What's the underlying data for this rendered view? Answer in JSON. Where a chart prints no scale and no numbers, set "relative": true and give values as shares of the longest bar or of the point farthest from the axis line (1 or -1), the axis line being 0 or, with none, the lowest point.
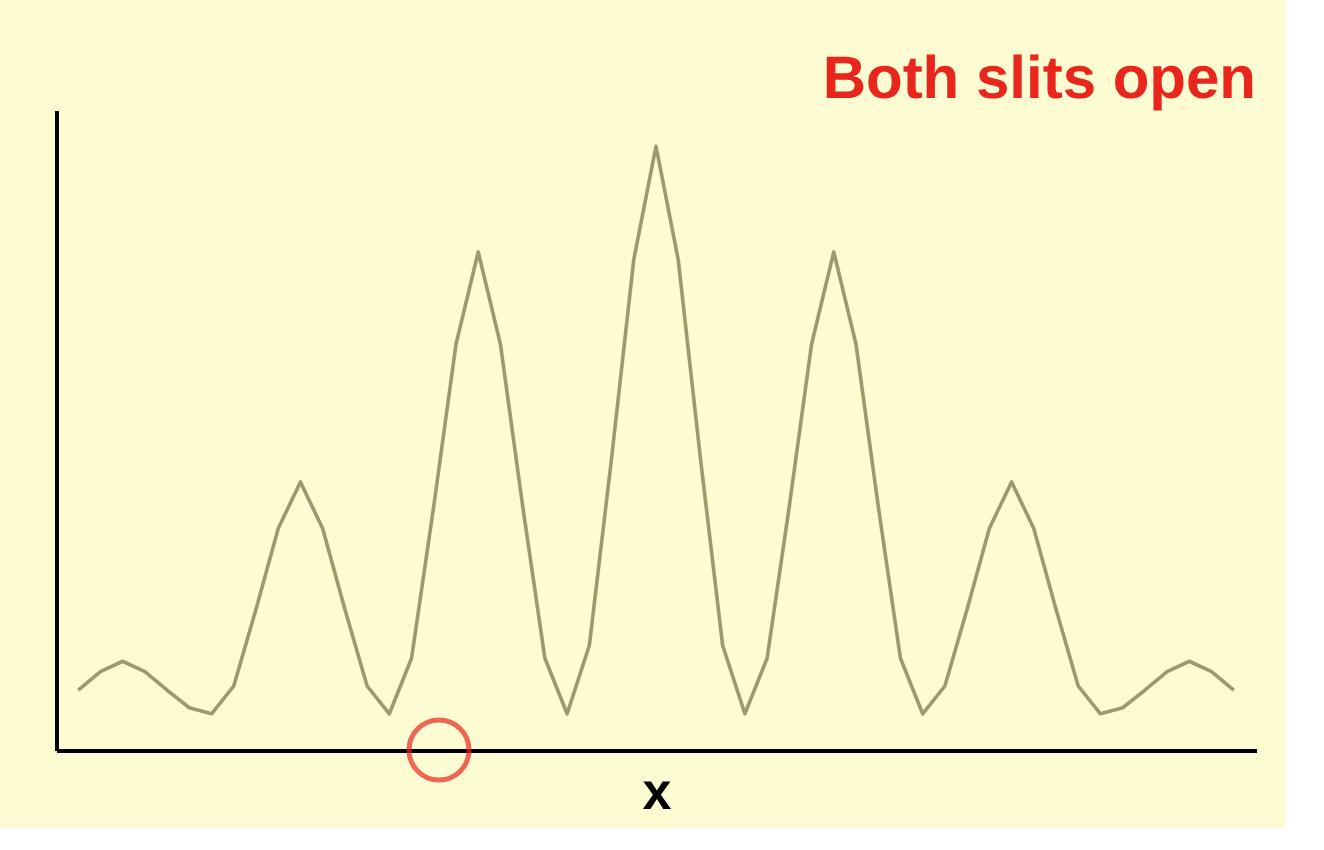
{
  "chart_data": {
    "type": "line",
    "title": "Both slits open",
    "xlabel": "x",
    "relative": true,
    "tick_labels": false,
    "grid": false,
    "legend": false,
    "categories": [
      null,
      null,
      null,
      null,
      null,
      null,
      null,
      null,
      null,
      null,
      null,
      null,
      null,
      null,
      null,
      null,
      null,
      null,
      null,
      null,
      null,
      null,
      null,
      null,
      null,
      null,
      null,
      null,
      null,
      null,
      null,
      null,
      null,
      null,
      null,
      null,
      null,
      null,
      null,
      null,
      null,
      null,
      null,
      null,
      null,
      null,
      null,
      null,
      null,
      null,
      null,
      null,
      null
    ],
    "series": [
      {
        "color": "#9c9a6c",
        "line_style": "solid",
        "marker": "none",
        "values": [
          0.099,
          0.13,
          0.147,
          0.13,
          0.099,
          0.07,
          0.06,
          0.106,
          0.233,
          0.367,
          0.444,
          0.367,
          0.233,
          0.106,
          0.06,
          0.152,
          0.404,
          0.672,
          0.825,
          0.672,
          0.404,
          0.152,
          0.06,
          0.173,
          0.483,
          0.812,
          1,
          0.812,
          0.483,
          0.173,
          0.06,
          0.152,
          0.404,
          0.672,
          0.825,
          0.672,
          0.404,
          0.152,
          0.06,
          0.106,
          0.233,
          0.367,
          0.444,
          0.367,
          0.233,
          0.106,
          0.06,
          0.07,
          0.099,
          0.13,
          0.147,
          0.13,
          0.099
        ]
      }
    ]
  }
}
